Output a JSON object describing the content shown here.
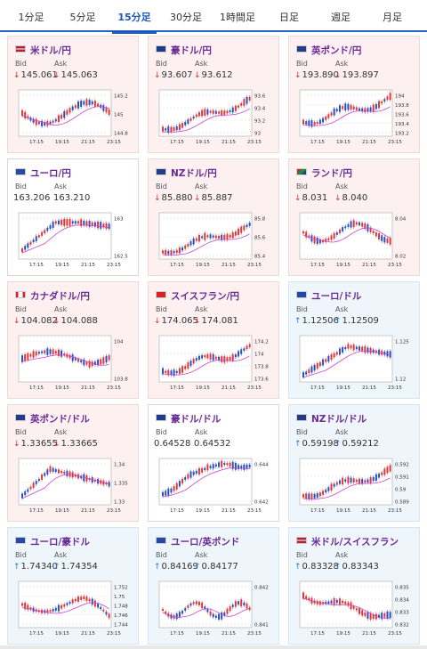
{
  "tabs": [
    "1分足",
    "5分足",
    "15分足",
    "30分足",
    "1時間足",
    "日足",
    "週足",
    "月足"
  ],
  "active_tab": 2,
  "labels": {
    "bid": "Bid",
    "ask": "Ask"
  },
  "colors": {
    "down_bg": "#fdf0f0",
    "up_bg": "#eef5fb",
    "candle_up": "#e03838",
    "candle_down": "#2a4fc0",
    "ma": "#cc44cc",
    "title": "#6a2a96"
  },
  "time_labels": [
    "17:15",
    "19:15",
    "21:15",
    "23:15"
  ],
  "pairs": [
    {
      "name": "米ドル/円",
      "flag": "us",
      "trend": "down",
      "bid": "145.061",
      "ask": "145.063",
      "ticks": [
        "145.2",
        "145",
        "144.8"
      ]
    },
    {
      "name": "豪ドル/円",
      "flag": "au",
      "trend": "down",
      "bid": "93.607",
      "ask": "93.612",
      "ticks": [
        "93.6",
        "93.4",
        "93.2",
        "93"
      ]
    },
    {
      "name": "英ポンド/円",
      "flag": "gb",
      "trend": "down",
      "bid": "193.890",
      "ask": "193.897",
      "ticks": [
        "194",
        "193.8",
        "193.6",
        "193.4",
        "193.2"
      ]
    },
    {
      "name": "ユーロ/円",
      "flag": "eu",
      "trend": "none",
      "bid": "163.206",
      "ask": "163.210",
      "ticks": [
        "163",
        "162.5"
      ]
    },
    {
      "name": "NZドル/円",
      "flag": "nz",
      "trend": "down",
      "bid": "85.880",
      "ask": "85.887",
      "ticks": [
        "85.8",
        "85.6",
        "85.4"
      ]
    },
    {
      "name": "ランド/円",
      "flag": "za",
      "trend": "down",
      "bid": "8.031",
      "ask": "8.040",
      "ticks": [
        "8.04",
        "8.02"
      ]
    },
    {
      "name": "カナダドル/円",
      "flag": "ca",
      "trend": "down",
      "bid": "104.082",
      "ask": "104.088",
      "ticks": [
        "104",
        "103.8"
      ]
    },
    {
      "name": "スイスフラン/円",
      "flag": "ch",
      "trend": "down",
      "bid": "174.065",
      "ask": "174.081",
      "ticks": [
        "174.2",
        "174",
        "173.8",
        "173.6"
      ]
    },
    {
      "name": "ユーロ/ドル",
      "flag": "eu",
      "trend": "up",
      "bid": "1.12506",
      "ask": "1.12509",
      "ticks": [
        "1.125",
        "1.12"
      ]
    },
    {
      "name": "英ポンド/ドル",
      "flag": "gb",
      "trend": "down",
      "bid": "1.33655",
      "ask": "1.33665",
      "ticks": [
        "1.34",
        "1.335",
        "1.33"
      ]
    },
    {
      "name": "豪ドル/ドル",
      "flag": "au",
      "trend": "none",
      "bid": "0.64528",
      "ask": "0.64532",
      "ticks": [
        "0.644",
        "0.642"
      ]
    },
    {
      "name": "NZドル/ドル",
      "flag": "nz",
      "trend": "up",
      "bid": "0.59198",
      "ask": "0.59212",
      "ticks": [
        "0.592",
        "0.591",
        "0.59",
        "0.589"
      ]
    },
    {
      "name": "ユーロ/豪ドル",
      "flag": "eu",
      "trend": "up",
      "bid": "1.74340",
      "ask": "1.74354",
      "ticks": [
        "1.752",
        "1.75",
        "1.748",
        "1.746",
        "1.744"
      ]
    },
    {
      "name": "ユーロ/英ポンド",
      "flag": "eu",
      "trend": "up",
      "bid": "0.84169",
      "ask": "0.84177",
      "ticks": [
        "0.842",
        "0.841"
      ]
    },
    {
      "name": "米ドル/スイスフラン",
      "flag": "us",
      "trend": "up",
      "bid": "0.83328",
      "ask": "0.83343",
      "ticks": [
        "0.835",
        "0.834",
        "0.833",
        "0.832"
      ]
    }
  ]
}
